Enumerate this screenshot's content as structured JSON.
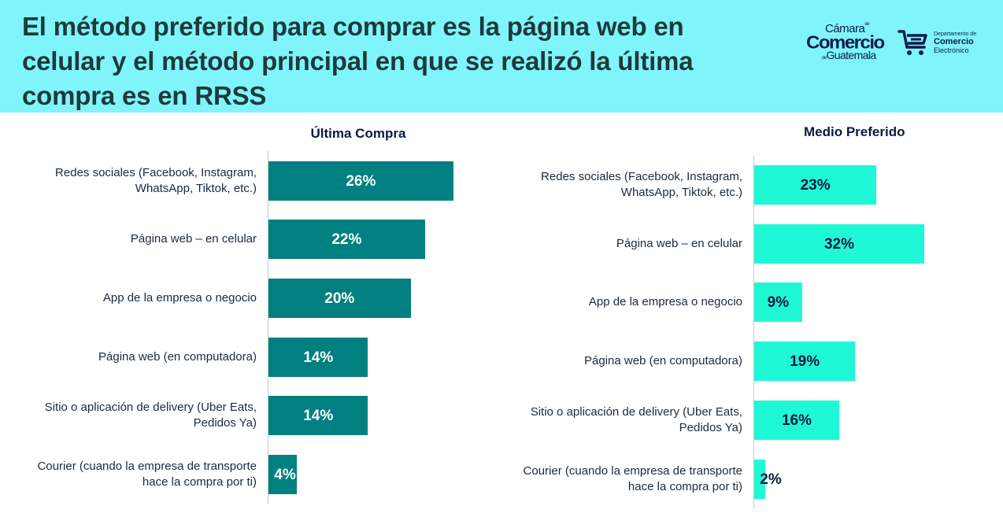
{
  "header": {
    "title": "El método preferido para comprar es la página web en celular y el método principal en que se realizó la última compra es en RRSS",
    "logo_camara": {
      "line1": "Cámara",
      "line1_small": "de",
      "line2": "Comercio",
      "line3_small": "de",
      "line3": "Guatemala"
    },
    "logo_dce": {
      "line1": "Departamento de",
      "line2": "Comercio",
      "line3": "Electrónico"
    }
  },
  "colors": {
    "header_bg": "#7ff5fb",
    "bar_left": "#008080",
    "bar_right": "#1ff8d6",
    "label_left": "#ffffff",
    "label_right": "#0d1b3e"
  },
  "chart_data": [
    {
      "type": "bar",
      "orientation": "horizontal",
      "title": "Última Compra",
      "categories": [
        "Redes sociales (Facebook, Instagram, WhatsApp, Tiktok, etc.)",
        "Página web – en celular",
        "App de la empresa o negocio",
        "Página web (en computadora)",
        "Sitio o aplicación de delivery (Uber Eats, Pedidos Ya)",
        "Courier (cuando la empresa de transporte hace la compra por ti)"
      ],
      "values": [
        26,
        22,
        20,
        14,
        14,
        4
      ],
      "value_labels": [
        "26%",
        "22%",
        "20%",
        "14%",
        "14%",
        "4%"
      ],
      "xlim": [
        0,
        32
      ],
      "grid": false
    },
    {
      "type": "bar",
      "orientation": "horizontal",
      "title": "Medio Preferido",
      "categories": [
        "Redes sociales (Facebook, Instagram, WhatsApp, Tiktok, etc.)",
        "Página web – en celular",
        "App de la empresa o negocio",
        "Página web (en computadora)",
        "Sitio o aplicación de delivery (Uber Eats, Pedidos Ya)",
        "Courier (cuando la empresa de transporte hace la compra por ti)"
      ],
      "values": [
        23,
        32,
        9,
        19,
        16,
        2
      ],
      "value_labels": [
        "23%",
        "32%",
        "9%",
        "19%",
        "16%",
        "2%"
      ],
      "xlim": [
        0,
        32
      ],
      "grid": false
    }
  ]
}
